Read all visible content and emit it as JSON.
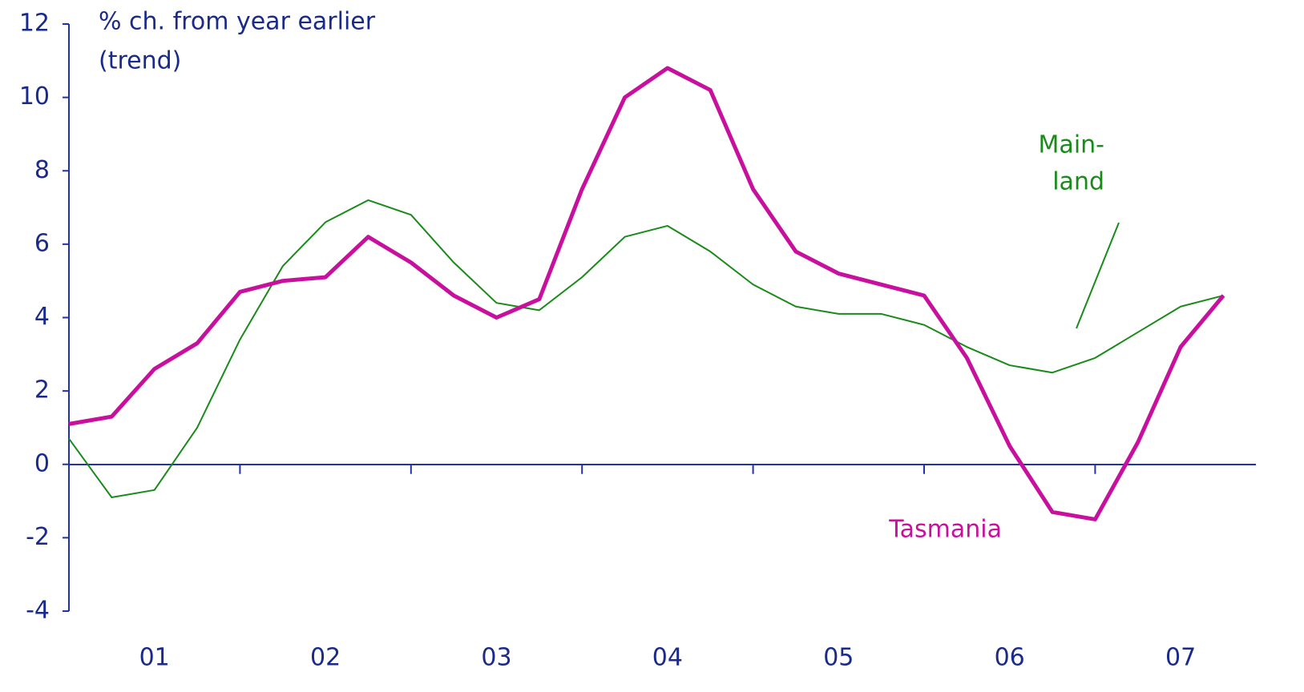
{
  "chart_data": {
    "type": "line",
    "y_label_lines": [
      "% ch. from year earlier",
      "(trend)"
    ],
    "categories": [
      null,
      null,
      "01",
      null,
      null,
      null,
      "02",
      null,
      null,
      null,
      "03",
      null,
      null,
      null,
      "04",
      null,
      null,
      null,
      "05",
      null,
      null,
      null,
      "06",
      null,
      null,
      null,
      "07",
      null
    ],
    "series": [
      {
        "label_lines": [
          "Tasmania"
        ],
        "color": "#c8109e",
        "width": 5,
        "values": [
          1.1,
          1.3,
          2.6,
          3.3,
          4.7,
          5.0,
          5.1,
          6.2,
          5.5,
          4.6,
          4.0,
          4.5,
          7.5,
          10.0,
          10.8,
          10.2,
          7.5,
          5.8,
          5.2,
          4.9,
          4.6,
          2.9,
          0.5,
          -1.3,
          -1.5,
          0.6,
          3.2,
          4.6
        ]
      },
      {
        "label_lines": [
          "Main-",
          "land"
        ],
        "color": "#1a8a1a",
        "width": 2,
        "values": [
          0.7,
          -0.9,
          -0.7,
          1.0,
          3.4,
          5.4,
          6.6,
          7.2,
          6.8,
          5.5,
          4.4,
          4.2,
          5.1,
          6.2,
          6.5,
          5.8,
          4.9,
          4.3,
          4.1,
          4.1,
          3.8,
          3.2,
          2.7,
          2.5,
          2.9,
          3.6,
          4.3,
          4.6
        ]
      }
    ],
    "ylim": [
      -4,
      12
    ],
    "yticks": [
      -4,
      -2,
      0,
      2,
      4,
      6,
      8,
      10,
      12
    ],
    "grid": false
  }
}
